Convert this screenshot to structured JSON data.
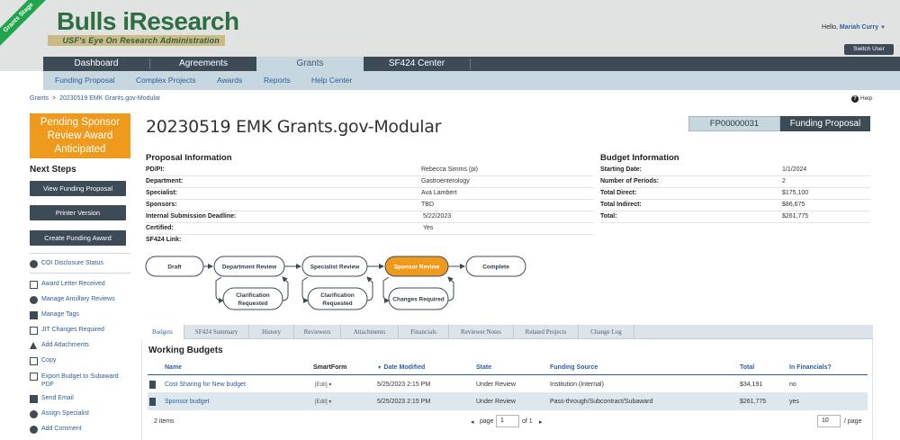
{
  "header": {
    "ribbon": "Grants Stage",
    "logo_title": "Bulls iResearch",
    "logo_subtitle": "USF's Eye On Research Administration",
    "hello_prefix": "Hello,",
    "user_name": "Mariah Curry",
    "switch_user": "Switch User"
  },
  "main_nav": [
    "Dashboard",
    "Agreements",
    "Grants",
    "SF424 Center"
  ],
  "main_nav_active": "Grants",
  "sub_nav": [
    "Funding Proposal",
    "Complex Projects",
    "Awards",
    "Reports",
    "Help Center"
  ],
  "breadcrumb": {
    "root": "Grants",
    "separator": ">",
    "current": "20230519 EMK Grants.gov-Modular"
  },
  "help": {
    "label": "Help",
    "icon": "question-icon"
  },
  "stage_box": {
    "line1": "Pending Sponsor",
    "line2": "Review Award",
    "line3": "Anticipated"
  },
  "next_steps": {
    "heading": "Next Steps",
    "buttons": [
      "View Funding Proposal",
      "Printer Version",
      "Create Funding Award"
    ]
  },
  "activities": [
    {
      "label": "COI Disclosure Status",
      "icon": "info-circle-icon"
    },
    {
      "label": "Award Letter Received",
      "icon": "envelope-icon"
    },
    {
      "label": "Manage Ancillary Reviews",
      "icon": "people-icon"
    },
    {
      "label": "Manage Tags",
      "icon": "tag-icon"
    },
    {
      "label": "JIT Changes Required",
      "icon": "document-icon"
    },
    {
      "label": "Add Attachments",
      "icon": "upload-icon"
    },
    {
      "label": "Copy",
      "icon": "copy-icon"
    },
    {
      "label": "Export Budget to Subaward",
      "label2": "PDF",
      "icon": "export-icon"
    },
    {
      "label": "Send Email",
      "icon": "send-icon"
    },
    {
      "label": "Assign Specialist",
      "icon": "person-icon"
    },
    {
      "label": "Add Comment",
      "icon": "comment-icon"
    }
  ],
  "page_title": "20230519 EMK Grants.gov-Modular",
  "record_id": "FP00000031",
  "record_type": "Funding Proposal",
  "proposal_info": {
    "heading": "Proposal Information",
    "rows": [
      {
        "label": "PD/PI:",
        "value": "Rebecca Simms (pi)"
      },
      {
        "label": "Department:",
        "value": "Gastroenterology"
      },
      {
        "label": "Specialist:",
        "value": "Ava Lambert"
      },
      {
        "label": "Sponsors:",
        "value": "TBD"
      },
      {
        "label": "Internal Submission Deadline:",
        "value": "5/22/2023"
      },
      {
        "label": "Certified:",
        "value": "Yes"
      },
      {
        "label": "SF424 Link:",
        "value": ""
      }
    ]
  },
  "budget_info": {
    "heading": "Budget Information",
    "rows": [
      {
        "label": "Starting Date:",
        "value": "1/1/2024"
      },
      {
        "label": "Number of Periods:",
        "value": "2"
      },
      {
        "label": "Total Direct:",
        "value": "$175,100"
      },
      {
        "label": "Total Indirect:",
        "value": "$86,675"
      },
      {
        "label": "Total:",
        "value": "$261,775"
      }
    ]
  },
  "workflow": {
    "draft": "Draft",
    "dept": "Department Review",
    "spec": "Specialist Review",
    "sponsor": "Sponsor Review",
    "complete": "Complete",
    "clar1_a": "Clarification",
    "clar1_b": "Requested",
    "clar2_a": "Clarification",
    "clar2_b": "Requested",
    "changes": "Changes Required",
    "current_color": "#ee9a1d"
  },
  "tabs": [
    "Budgets",
    "SF424 Summary",
    "History",
    "Reviewers",
    "Attachments",
    "Financials",
    "Reviewer Notes",
    "Related Projects",
    "Change Log"
  ],
  "tabs_active": "Budgets",
  "working_budgets": {
    "heading": "Working Budgets",
    "columns": [
      "Name",
      "SmartForm",
      "Date Modified",
      "State",
      "Funding Source",
      "Total",
      "In Financials?"
    ],
    "rows": [
      {
        "name": "Cost Sharing for New budget",
        "smartform": "[Edit]",
        "date": "5/25/2023 2:15 PM",
        "state": "Under Review",
        "source": "Institution (Internal)",
        "total": "$34,191",
        "in_fin": "no"
      },
      {
        "name": "Sponsor budget",
        "smartform": "[Edit]",
        "date": "5/25/2023 2:15 PM",
        "state": "Under Review",
        "source": "Pass-through/Subcontract/Subaward",
        "total": "$261,775",
        "in_fin": "yes"
      }
    ],
    "item_count": "2 items",
    "page_label": "page",
    "page_value": "1",
    "of_label": "of 1",
    "page_size": "10",
    "per_page_label": "/ page"
  }
}
